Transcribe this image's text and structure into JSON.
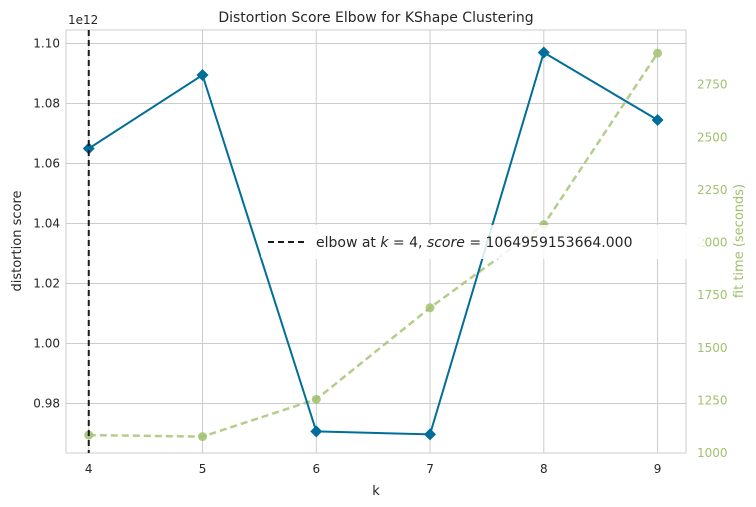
{
  "chart_data": {
    "type": "line",
    "title": "Distortion Score Elbow for KShape Clustering",
    "xlabel": "k",
    "ylabel": "distortion score",
    "y2label": "fit time (seconds)",
    "offset_label": "1e12",
    "x": [
      4,
      5,
      6,
      7,
      8,
      9
    ],
    "xlim": [
      3.8,
      9.25
    ],
    "x_ticks": [
      "4",
      "5",
      "6",
      "7",
      "8",
      "9"
    ],
    "series": [
      {
        "key": "score",
        "axis": "left",
        "values": [
          1.065,
          1.0895,
          0.9707,
          0.9697,
          1.097,
          1.0745
        ],
        "color": "#006e99",
        "style": "solid",
        "marker": "diamond"
      },
      {
        "key": "fit_time",
        "axis": "right",
        "values": [
          1085,
          1078,
          1255,
          1690,
          2085,
          2900
        ],
        "color": "#a1c16e",
        "style": "dashed",
        "marker": "circle"
      }
    ],
    "ylim": [
      0.9635,
      1.1045
    ],
    "y_ticks": [
      "0.98",
      "1.00",
      "1.02",
      "1.04",
      "1.06",
      "1.08",
      "1.10"
    ],
    "y2lim": [
      1000,
      3010
    ],
    "y2_ticks": [
      "1000",
      "1250",
      "1500",
      "1750",
      "2000",
      "2250",
      "2500",
      "2750"
    ],
    "elbow": {
      "x": 4,
      "color": "#1a1a1a"
    },
    "legend": {
      "position": "center-right",
      "parts": [
        "elbow at ",
        "k",
        " = 4, ",
        "score",
        " = 1064959153664.000"
      ]
    },
    "grid": true
  }
}
